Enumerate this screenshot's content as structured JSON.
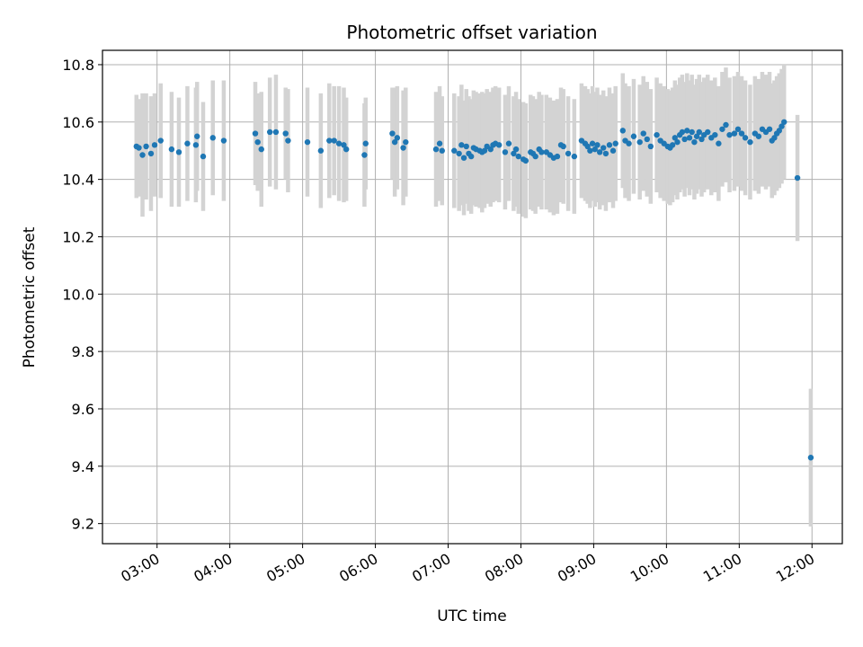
{
  "chart_data": {
    "type": "scatter",
    "title": "Photometric offset variation",
    "xlabel": "UTC time",
    "ylabel": "Photometric offset",
    "x_unit": "UTC time (HH:MM)",
    "xlim": [
      "02:15",
      "12:25"
    ],
    "ylim": [
      9.13,
      10.85
    ],
    "grid": true,
    "xticks": [
      "03:00",
      "04:00",
      "05:00",
      "06:00",
      "07:00",
      "08:00",
      "09:00",
      "10:00",
      "11:00",
      "12:00"
    ],
    "yticks": [
      9.2,
      9.4,
      9.6,
      9.8,
      10.0,
      10.2,
      10.4,
      10.6,
      10.8
    ],
    "ytick_labels": [
      "9.2",
      "9.4",
      "9.6",
      "9.8",
      "10.0",
      "10.2",
      "10.4",
      "10.6",
      "10.8"
    ],
    "point_color": "#1f77b4",
    "errorbar_color": "#d3d3d3",
    "series": [
      {
        "values": [
          {
            "x": "02:43",
            "y": 10.515,
            "err": 0.18
          },
          {
            "x": "02:45",
            "y": 10.51,
            "err": 0.17
          },
          {
            "x": "02:48",
            "y": 10.485,
            "err": 0.215
          },
          {
            "x": "02:51",
            "y": 10.515,
            "err": 0.185
          },
          {
            "x": "02:55",
            "y": 10.49,
            "err": 0.2
          },
          {
            "x": "02:58",
            "y": 10.52,
            "err": 0.18
          },
          {
            "x": "03:03",
            "y": 10.535,
            "err": 0.2
          },
          {
            "x": "03:12",
            "y": 10.505,
            "err": 0.2
          },
          {
            "x": "03:18",
            "y": 10.495,
            "err": 0.19
          },
          {
            "x": "03:25",
            "y": 10.525,
            "err": 0.2
          },
          {
            "x": "03:32",
            "y": 10.52,
            "err": 0.2
          },
          {
            "x": "03:33",
            "y": 10.55,
            "err": 0.19
          },
          {
            "x": "03:38",
            "y": 10.48,
            "err": 0.19
          },
          {
            "x": "03:46",
            "y": 10.545,
            "err": 0.2
          },
          {
            "x": "03:55",
            "y": 10.535,
            "err": 0.21
          },
          {
            "x": "04:21",
            "y": 10.56,
            "err": 0.18
          },
          {
            "x": "04:23",
            "y": 10.53,
            "err": 0.17
          },
          {
            "x": "04:26",
            "y": 10.505,
            "err": 0.2
          },
          {
            "x": "04:33",
            "y": 10.565,
            "err": 0.19
          },
          {
            "x": "04:38",
            "y": 10.565,
            "err": 0.2
          },
          {
            "x": "04:46",
            "y": 10.56,
            "err": 0.16
          },
          {
            "x": "04:48",
            "y": 10.535,
            "err": 0.18
          },
          {
            "x": "05:04",
            "y": 10.53,
            "err": 0.19
          },
          {
            "x": "05:15",
            "y": 10.5,
            "err": 0.2
          },
          {
            "x": "05:22",
            "y": 10.535,
            "err": 0.2
          },
          {
            "x": "05:26",
            "y": 10.535,
            "err": 0.19
          },
          {
            "x": "05:30",
            "y": 10.525,
            "err": 0.2
          },
          {
            "x": "05:34",
            "y": 10.52,
            "err": 0.2
          },
          {
            "x": "05:36",
            "y": 10.505,
            "err": 0.18
          },
          {
            "x": "05:51",
            "y": 10.485,
            "err": 0.18
          },
          {
            "x": "05:52",
            "y": 10.525,
            "err": 0.16
          },
          {
            "x": "06:14",
            "y": 10.56,
            "err": 0.16
          },
          {
            "x": "06:16",
            "y": 10.53,
            "err": 0.19
          },
          {
            "x": "06:18",
            "y": 10.545,
            "err": 0.18
          },
          {
            "x": "06:23",
            "y": 10.51,
            "err": 0.2
          },
          {
            "x": "06:25",
            "y": 10.53,
            "err": 0.19
          },
          {
            "x": "06:50",
            "y": 10.505,
            "err": 0.2
          },
          {
            "x": "06:53",
            "y": 10.525,
            "err": 0.2
          },
          {
            "x": "06:55",
            "y": 10.5,
            "err": 0.19
          },
          {
            "x": "07:05",
            "y": 10.5,
            "err": 0.2
          },
          {
            "x": "07:09",
            "y": 10.49,
            "err": 0.2
          },
          {
            "x": "07:11",
            "y": 10.52,
            "err": 0.21
          },
          {
            "x": "07:13",
            "y": 10.475,
            "err": 0.2
          },
          {
            "x": "07:15",
            "y": 10.515,
            "err": 0.2
          },
          {
            "x": "07:17",
            "y": 10.49,
            "err": 0.2
          },
          {
            "x": "07:19",
            "y": 10.48,
            "err": 0.2
          },
          {
            "x": "07:21",
            "y": 10.51,
            "err": 0.2
          },
          {
            "x": "07:23",
            "y": 10.505,
            "err": 0.2
          },
          {
            "x": "07:26",
            "y": 10.5,
            "err": 0.2
          },
          {
            "x": "07:28",
            "y": 10.495,
            "err": 0.21
          },
          {
            "x": "07:30",
            "y": 10.5,
            "err": 0.2
          },
          {
            "x": "07:32",
            "y": 10.515,
            "err": 0.2
          },
          {
            "x": "07:35",
            "y": 10.505,
            "err": 0.2
          },
          {
            "x": "07:37",
            "y": 10.52,
            "err": 0.2
          },
          {
            "x": "07:39",
            "y": 10.525,
            "err": 0.2
          },
          {
            "x": "07:42",
            "y": 10.52,
            "err": 0.2
          },
          {
            "x": "07:47",
            "y": 10.495,
            "err": 0.2
          },
          {
            "x": "07:50",
            "y": 10.525,
            "err": 0.2
          },
          {
            "x": "07:54",
            "y": 10.49,
            "err": 0.2
          },
          {
            "x": "07:56",
            "y": 10.505,
            "err": 0.2
          },
          {
            "x": "07:58",
            "y": 10.48,
            "err": 0.2
          },
          {
            "x": "08:02",
            "y": 10.47,
            "err": 0.2
          },
          {
            "x": "08:04",
            "y": 10.465,
            "err": 0.2
          },
          {
            "x": "08:08",
            "y": 10.495,
            "err": 0.2
          },
          {
            "x": "08:10",
            "y": 10.49,
            "err": 0.2
          },
          {
            "x": "08:12",
            "y": 10.48,
            "err": 0.2
          },
          {
            "x": "08:15",
            "y": 10.505,
            "err": 0.2
          },
          {
            "x": "08:17",
            "y": 10.495,
            "err": 0.2
          },
          {
            "x": "08:21",
            "y": 10.495,
            "err": 0.2
          },
          {
            "x": "08:24",
            "y": 10.485,
            "err": 0.2
          },
          {
            "x": "08:27",
            "y": 10.475,
            "err": 0.2
          },
          {
            "x": "08:30",
            "y": 10.48,
            "err": 0.2
          },
          {
            "x": "08:33",
            "y": 10.52,
            "err": 0.2
          },
          {
            "x": "08:35",
            "y": 10.515,
            "err": 0.2
          },
          {
            "x": "08:39",
            "y": 10.49,
            "err": 0.2
          },
          {
            "x": "08:44",
            "y": 10.48,
            "err": 0.2
          },
          {
            "x": "08:50",
            "y": 10.535,
            "err": 0.2
          },
          {
            "x": "08:53",
            "y": 10.525,
            "err": 0.2
          },
          {
            "x": "08:55",
            "y": 10.515,
            "err": 0.2
          },
          {
            "x": "08:57",
            "y": 10.5,
            "err": 0.2
          },
          {
            "x": "08:59",
            "y": 10.525,
            "err": 0.2
          },
          {
            "x": "09:01",
            "y": 10.505,
            "err": 0.2
          },
          {
            "x": "09:03",
            "y": 10.52,
            "err": 0.2
          },
          {
            "x": "09:05",
            "y": 10.495,
            "err": 0.2
          },
          {
            "x": "09:08",
            "y": 10.51,
            "err": 0.2
          },
          {
            "x": "09:10",
            "y": 10.49,
            "err": 0.2
          },
          {
            "x": "09:13",
            "y": 10.52,
            "err": 0.2
          },
          {
            "x": "09:16",
            "y": 10.5,
            "err": 0.2
          },
          {
            "x": "09:18",
            "y": 10.525,
            "err": 0.2
          },
          {
            "x": "09:24",
            "y": 10.57,
            "err": 0.2
          },
          {
            "x": "09:26",
            "y": 10.535,
            "err": 0.2
          },
          {
            "x": "09:29",
            "y": 10.525,
            "err": 0.2
          },
          {
            "x": "09:33",
            "y": 10.55,
            "err": 0.2
          },
          {
            "x": "09:38",
            "y": 10.53,
            "err": 0.2
          },
          {
            "x": "09:41",
            "y": 10.56,
            "err": 0.2
          },
          {
            "x": "09:44",
            "y": 10.54,
            "err": 0.2
          },
          {
            "x": "09:47",
            "y": 10.515,
            "err": 0.2
          },
          {
            "x": "09:52",
            "y": 10.555,
            "err": 0.2
          },
          {
            "x": "09:55",
            "y": 10.535,
            "err": 0.2
          },
          {
            "x": "09:58",
            "y": 10.525,
            "err": 0.2
          },
          {
            "x": "10:01",
            "y": 10.515,
            "err": 0.2
          },
          {
            "x": "10:03",
            "y": 10.51,
            "err": 0.2
          },
          {
            "x": "10:05",
            "y": 10.52,
            "err": 0.2
          },
          {
            "x": "10:07",
            "y": 10.545,
            "err": 0.2
          },
          {
            "x": "10:09",
            "y": 10.53,
            "err": 0.2
          },
          {
            "x": "10:11",
            "y": 10.555,
            "err": 0.2
          },
          {
            "x": "10:13",
            "y": 10.565,
            "err": 0.2
          },
          {
            "x": "10:15",
            "y": 10.54,
            "err": 0.2
          },
          {
            "x": "10:17",
            "y": 10.57,
            "err": 0.2
          },
          {
            "x": "10:19",
            "y": 10.545,
            "err": 0.2
          },
          {
            "x": "10:21",
            "y": 10.565,
            "err": 0.2
          },
          {
            "x": "10:23",
            "y": 10.53,
            "err": 0.2
          },
          {
            "x": "10:25",
            "y": 10.55,
            "err": 0.2
          },
          {
            "x": "10:27",
            "y": 10.565,
            "err": 0.2
          },
          {
            "x": "10:29",
            "y": 10.54,
            "err": 0.2
          },
          {
            "x": "10:31",
            "y": 10.555,
            "err": 0.2
          },
          {
            "x": "10:34",
            "y": 10.565,
            "err": 0.2
          },
          {
            "x": "10:37",
            "y": 10.545,
            "err": 0.2
          },
          {
            "x": "10:40",
            "y": 10.555,
            "err": 0.2
          },
          {
            "x": "10:43",
            "y": 10.525,
            "err": 0.2
          },
          {
            "x": "10:46",
            "y": 10.575,
            "err": 0.2
          },
          {
            "x": "10:49",
            "y": 10.59,
            "err": 0.2
          },
          {
            "x": "10:52",
            "y": 10.555,
            "err": 0.2
          },
          {
            "x": "10:56",
            "y": 10.56,
            "err": 0.2
          },
          {
            "x": "10:59",
            "y": 10.575,
            "err": 0.2
          },
          {
            "x": "11:02",
            "y": 10.56,
            "err": 0.2
          },
          {
            "x": "11:05",
            "y": 10.545,
            "err": 0.2
          },
          {
            "x": "11:09",
            "y": 10.53,
            "err": 0.2
          },
          {
            "x": "11:13",
            "y": 10.56,
            "err": 0.2
          },
          {
            "x": "11:16",
            "y": 10.55,
            "err": 0.2
          },
          {
            "x": "11:19",
            "y": 10.575,
            "err": 0.2
          },
          {
            "x": "11:22",
            "y": 10.565,
            "err": 0.2
          },
          {
            "x": "11:25",
            "y": 10.575,
            "err": 0.2
          },
          {
            "x": "11:27",
            "y": 10.535,
            "err": 0.2
          },
          {
            "x": "11:29",
            "y": 10.545,
            "err": 0.2
          },
          {
            "x": "11:31",
            "y": 10.56,
            "err": 0.2
          },
          {
            "x": "11:33",
            "y": 10.57,
            "err": 0.2
          },
          {
            "x": "11:35",
            "y": 10.585,
            "err": 0.2
          },
          {
            "x": "11:37",
            "y": 10.6,
            "err": 0.2
          },
          {
            "x": "11:48",
            "y": 10.405,
            "err": 0.22
          },
          {
            "x": "11:59",
            "y": 9.43,
            "err": 0.24
          }
        ]
      }
    ]
  }
}
